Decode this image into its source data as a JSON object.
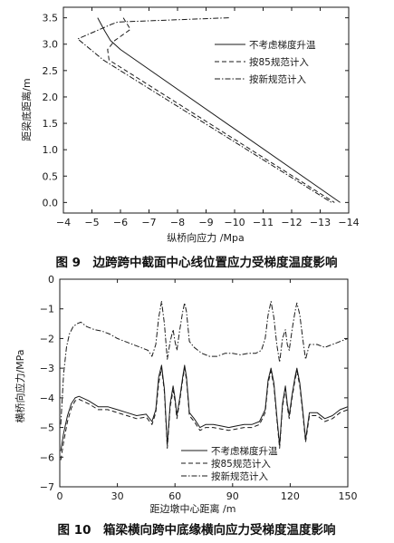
{
  "figure9": {
    "caption": "图 9　边跨跨中截面中心线位置应力受梯度温度影响",
    "chart_data": {
      "type": "line",
      "xlabel": "纵桥向应力 /Mpa",
      "ylabel": "距梁底距离/m",
      "xlim": [
        -4,
        -14
      ],
      "ylim": [
        -0.2,
        3.7
      ],
      "x_ticks": [
        -4,
        -5,
        -6,
        -7,
        -8,
        -9,
        -10,
        -11,
        -12,
        -13,
        -14
      ],
      "y_ticks": [
        0.0,
        0.5,
        1.0,
        1.5,
        2.0,
        2.5,
        3.0,
        3.5
      ],
      "legend": "top-right",
      "series": [
        {
          "name": "不考虑梯度升温",
          "style": "solid",
          "points": [
            [
              -5.2,
              3.5
            ],
            [
              -5.45,
              3.25
            ],
            [
              -5.65,
              3.07
            ],
            [
              -6.0,
              2.9
            ],
            [
              -13.7,
              0.0
            ]
          ]
        },
        {
          "name": "按85规范计入",
          "style": "dashed",
          "points": [
            [
              -6.1,
              3.5
            ],
            [
              -6.35,
              3.28
            ],
            [
              -5.8,
              3.07
            ],
            [
              -5.55,
              2.9
            ],
            [
              -5.6,
              2.7
            ],
            [
              -13.5,
              0.0
            ]
          ]
        },
        {
          "name": "按新规范计入",
          "style": "dashdot",
          "points": [
            [
              -9.8,
              3.5
            ],
            [
              -5.9,
              3.42
            ],
            [
              -5.7,
              3.38
            ],
            [
              -4.5,
              3.1
            ],
            [
              -5.4,
              2.7
            ],
            [
              -13.4,
              0.0
            ]
          ]
        }
      ]
    }
  },
  "figure10": {
    "caption": "图 10　箱梁横向跨中底缘横向应力受梯度温度影响",
    "chart_data": {
      "type": "line",
      "xlabel": "距边墩中心距离 /m",
      "ylabel": "横桥向应力/MPa",
      "xlim": [
        0,
        150
      ],
      "ylim": [
        -7,
        0
      ],
      "x_ticks": [
        0,
        30,
        60,
        90,
        120,
        150
      ],
      "y_ticks": [
        0,
        -1,
        -2,
        -3,
        -4,
        -5,
        -6,
        -7
      ],
      "legend": "bottom-right",
      "series": [
        {
          "name": "不考虑梯度升温",
          "style": "solid",
          "points": [
            [
              0.5,
              -5.8
            ],
            [
              2,
              -5.2
            ],
            [
              4,
              -4.6
            ],
            [
              6,
              -4.2
            ],
            [
              8,
              -4.0
            ],
            [
              10,
              -3.95
            ],
            [
              15,
              -4.1
            ],
            [
              20,
              -4.3
            ],
            [
              25,
              -4.3
            ],
            [
              30,
              -4.4
            ],
            [
              35,
              -4.5
            ],
            [
              40,
              -4.6
            ],
            [
              45,
              -4.55
            ],
            [
              48,
              -4.8
            ],
            [
              50,
              -4.4
            ],
            [
              51.5,
              -3.3
            ],
            [
              53,
              -2.9
            ],
            [
              54.5,
              -3.7
            ],
            [
              56,
              -5.6
            ],
            [
              57.5,
              -4.2
            ],
            [
              59,
              -3.6
            ],
            [
              60,
              -4.0
            ],
            [
              61,
              -4.6
            ],
            [
              62.5,
              -4.0
            ],
            [
              64,
              -3.3
            ],
            [
              65,
              -2.9
            ],
            [
              66,
              -3.3
            ],
            [
              67.5,
              -4.5
            ],
            [
              70,
              -4.7
            ],
            [
              73,
              -5.0
            ],
            [
              76,
              -4.9
            ],
            [
              80,
              -4.9
            ],
            [
              84,
              -4.95
            ],
            [
              88,
              -5.0
            ],
            [
              92,
              -4.95
            ],
            [
              96,
              -4.9
            ],
            [
              100,
              -4.9
            ],
            [
              104,
              -4.8
            ],
            [
              107,
              -4.4
            ],
            [
              108.5,
              -3.4
            ],
            [
              110,
              -3.0
            ],
            [
              111.5,
              -3.5
            ],
            [
              113,
              -4.6
            ],
            [
              114.5,
              -5.6
            ],
            [
              116,
              -4.2
            ],
            [
              117.5,
              -3.6
            ],
            [
              118.5,
              -4.2
            ],
            [
              119.5,
              -4.6
            ],
            [
              121,
              -3.9
            ],
            [
              122.5,
              -3.3
            ],
            [
              123.5,
              -3.0
            ],
            [
              125,
              -3.5
            ],
            [
              126.5,
              -4.4
            ],
            [
              128,
              -5.4
            ],
            [
              130,
              -4.5
            ],
            [
              134,
              -4.5
            ],
            [
              138,
              -4.7
            ],
            [
              142,
              -4.6
            ],
            [
              146,
              -4.4
            ],
            [
              150,
              -4.3
            ]
          ]
        },
        {
          "name": "按85规范计入",
          "style": "dashed",
          "points": [
            [
              0.5,
              -6.1
            ],
            [
              2,
              -5.5
            ],
            [
              4,
              -4.8
            ],
            [
              6,
              -4.35
            ],
            [
              8,
              -4.1
            ],
            [
              10,
              -4.05
            ],
            [
              15,
              -4.2
            ],
            [
              20,
              -4.4
            ],
            [
              25,
              -4.4
            ],
            [
              30,
              -4.5
            ],
            [
              35,
              -4.6
            ],
            [
              40,
              -4.7
            ],
            [
              45,
              -4.65
            ],
            [
              48,
              -4.9
            ],
            [
              50,
              -4.5
            ],
            [
              51.5,
              -3.5
            ],
            [
              53,
              -3.0
            ],
            [
              54.5,
              -3.8
            ],
            [
              56,
              -5.7
            ],
            [
              57.5,
              -4.3
            ],
            [
              59,
              -3.75
            ],
            [
              60,
              -4.1
            ],
            [
              61,
              -4.7
            ],
            [
              62.5,
              -4.1
            ],
            [
              64,
              -3.4
            ],
            [
              65,
              -3.0
            ],
            [
              66,
              -3.4
            ],
            [
              67.5,
              -4.6
            ],
            [
              70,
              -4.8
            ],
            [
              73,
              -5.1
            ],
            [
              76,
              -5.0
            ],
            [
              80,
              -5.0
            ],
            [
              84,
              -5.05
            ],
            [
              88,
              -5.1
            ],
            [
              92,
              -5.05
            ],
            [
              96,
              -5.0
            ],
            [
              100,
              -5.0
            ],
            [
              104,
              -4.9
            ],
            [
              107,
              -4.5
            ],
            [
              108.5,
              -3.5
            ],
            [
              110,
              -3.1
            ],
            [
              111.5,
              -3.6
            ],
            [
              113,
              -4.7
            ],
            [
              114.5,
              -5.7
            ],
            [
              116,
              -4.3
            ],
            [
              117.5,
              -3.7
            ],
            [
              118.5,
              -4.3
            ],
            [
              119.5,
              -4.7
            ],
            [
              121,
              -4.0
            ],
            [
              122.5,
              -3.4
            ],
            [
              123.5,
              -3.1
            ],
            [
              125,
              -3.6
            ],
            [
              126.5,
              -4.5
            ],
            [
              128,
              -5.5
            ],
            [
              130,
              -4.6
            ],
            [
              134,
              -4.6
            ],
            [
              138,
              -4.8
            ],
            [
              142,
              -4.7
            ],
            [
              146,
              -4.5
            ],
            [
              150,
              -4.4
            ]
          ]
        },
        {
          "name": "按新规范计入",
          "style": "dashdot",
          "points": [
            [
              0.5,
              -4.9
            ],
            [
              2,
              -3.2
            ],
            [
              3.5,
              -2.3
            ],
            [
              5,
              -1.85
            ],
            [
              7,
              -1.6
            ],
            [
              9,
              -1.5
            ],
            [
              11,
              -1.45
            ],
            [
              14,
              -1.6
            ],
            [
              18,
              -1.7
            ],
            [
              22,
              -1.75
            ],
            [
              26,
              -1.85
            ],
            [
              30,
              -2.0
            ],
            [
              34,
              -2.1
            ],
            [
              38,
              -2.2
            ],
            [
              42,
              -2.3
            ],
            [
              46,
              -2.4
            ],
            [
              48,
              -2.6
            ],
            [
              50,
              -2.2
            ],
            [
              51.5,
              -1.3
            ],
            [
              53,
              -0.75
            ],
            [
              54.5,
              -1.5
            ],
            [
              56,
              -2.7
            ],
            [
              57.5,
              -2.1
            ],
            [
              59,
              -1.7
            ],
            [
              60,
              -2.1
            ],
            [
              61,
              -2.4
            ],
            [
              62.5,
              -1.7
            ],
            [
              64,
              -1.1
            ],
            [
              65,
              -0.8
            ],
            [
              66,
              -1.1
            ],
            [
              67.5,
              -2.1
            ],
            [
              70,
              -2.3
            ],
            [
              74,
              -2.5
            ],
            [
              78,
              -2.6
            ],
            [
              82,
              -2.6
            ],
            [
              86,
              -2.5
            ],
            [
              90,
              -2.5
            ],
            [
              94,
              -2.55
            ],
            [
              98,
              -2.5
            ],
            [
              102,
              -2.5
            ],
            [
              105,
              -2.4
            ],
            [
              107,
              -2.0
            ],
            [
              108.5,
              -1.2
            ],
            [
              110,
              -0.75
            ],
            [
              111.5,
              -1.3
            ],
            [
              113,
              -2.2
            ],
            [
              114.5,
              -2.8
            ],
            [
              116,
              -2.0
            ],
            [
              117.5,
              -1.7
            ],
            [
              118.5,
              -2.2
            ],
            [
              119.5,
              -2.4
            ],
            [
              121,
              -1.7
            ],
            [
              122.5,
              -1.1
            ],
            [
              123.5,
              -0.8
            ],
            [
              125,
              -1.2
            ],
            [
              126.5,
              -2.0
            ],
            [
              128,
              -2.7
            ],
            [
              130,
              -2.2
            ],
            [
              134,
              -2.2
            ],
            [
              138,
              -2.3
            ],
            [
              142,
              -2.2
            ],
            [
              146,
              -2.1
            ],
            [
              150,
              -2.0
            ]
          ]
        }
      ]
    }
  }
}
